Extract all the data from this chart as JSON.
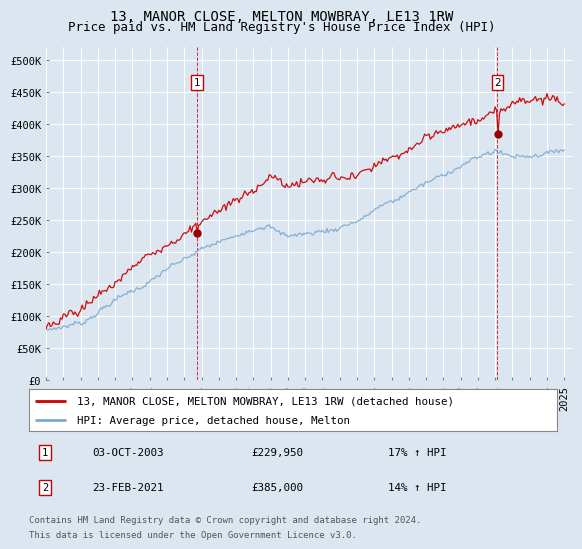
{
  "title": "13, MANOR CLOSE, MELTON MOWBRAY, LE13 1RW",
  "subtitle": "Price paid vs. HM Land Registry's House Price Index (HPI)",
  "background_color": "#dce6f1",
  "plot_bg_color": "#dce6f1",
  "legend_label_red": "13, MANOR CLOSE, MELTON MOWBRAY, LE13 1RW (detached house)",
  "legend_label_blue": "HPI: Average price, detached house, Melton",
  "red_color": "#cc0000",
  "blue_color": "#7aaad0",
  "marker_color": "#990000",
  "transaction1_year": 2003.75,
  "transaction1_price": 229950,
  "transaction1_date": "03-OCT-2003",
  "transaction1_price_str": "£229,950",
  "transaction1_hpi": "17% ↑ HPI",
  "transaction2_year": 2021.13,
  "transaction2_price": 385000,
  "transaction2_date": "23-FEB-2021",
  "transaction2_price_str": "£385,000",
  "transaction2_hpi": "14% ↑ HPI",
  "ylim": [
    0,
    520000
  ],
  "xlim_start": 1995.0,
  "xlim_end": 2025.5,
  "yticks": [
    0,
    50000,
    100000,
    150000,
    200000,
    250000,
    300000,
    350000,
    400000,
    450000,
    500000
  ],
  "ytick_labels": [
    "£0",
    "£50K",
    "£100K",
    "£150K",
    "£200K",
    "£250K",
    "£300K",
    "£350K",
    "£400K",
    "£450K",
    "£500K"
  ],
  "xticks": [
    1995,
    1996,
    1997,
    1998,
    1999,
    2000,
    2001,
    2002,
    2003,
    2004,
    2005,
    2006,
    2007,
    2008,
    2009,
    2010,
    2011,
    2012,
    2013,
    2014,
    2015,
    2016,
    2017,
    2018,
    2019,
    2020,
    2021,
    2022,
    2023,
    2024,
    2025
  ],
  "footer_line1": "Contains HM Land Registry data © Crown copyright and database right 2024.",
  "footer_line2": "This data is licensed under the Open Government Licence v3.0.",
  "title_fontsize": 10,
  "subtitle_fontsize": 9,
  "tick_fontsize": 7.5,
  "legend_fontsize": 8,
  "footer_fontsize": 6.5
}
